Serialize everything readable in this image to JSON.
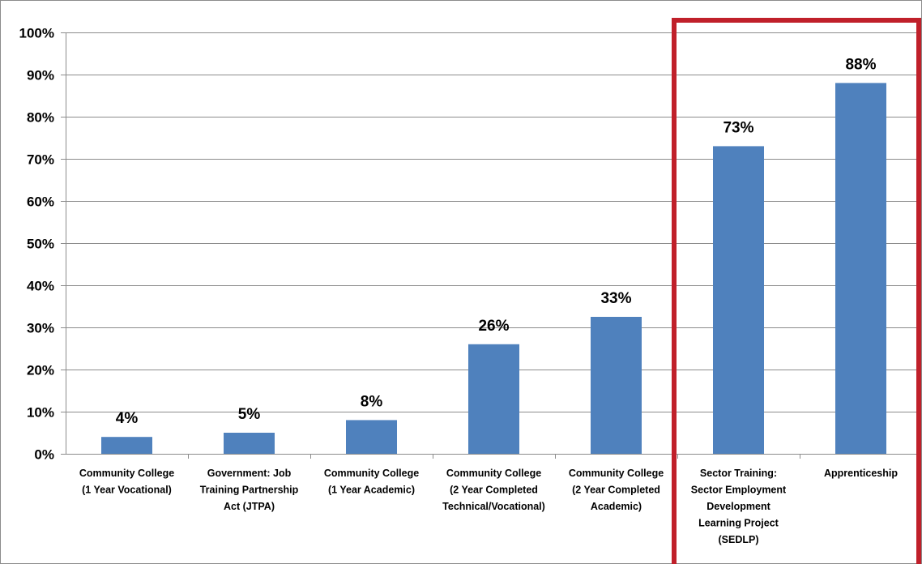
{
  "chart_data": {
    "type": "bar",
    "categories": [
      [
        "Community College",
        "(1 Year Vocational)"
      ],
      [
        "Government: Job",
        "Training Partnership",
        "Act (JTPA)"
      ],
      [
        "Community College",
        "(1 Year Academic)"
      ],
      [
        "Community College",
        "(2 Year  Completed",
        "Technical/Vocational)"
      ],
      [
        "Community College",
        "(2 Year  Completed",
        "Academic)"
      ],
      [
        "Sector Training:",
        "Sector Employment",
        "Development",
        "Learning Project",
        "(SEDLP)"
      ],
      [
        "Apprenticeship"
      ]
    ],
    "values": [
      4,
      5,
      8,
      26,
      32.5,
      73,
      88
    ],
    "data_labels": [
      "4%",
      "5%",
      "8%",
      "26%",
      "33%",
      "73%",
      "88%"
    ],
    "ylim": [
      0,
      100
    ],
    "yticks": [
      0,
      10,
      20,
      30,
      40,
      50,
      60,
      70,
      80,
      90,
      100
    ],
    "ytick_labels": [
      "0%",
      "10%",
      "20%",
      "30%",
      "40%",
      "50%",
      "60%",
      "70%",
      "80%",
      "90%",
      "100%"
    ],
    "grid": true,
    "highlight": {
      "categories": [
        5,
        6
      ],
      "color": "#C0202A"
    },
    "colors": {
      "bar": "#4F81BD",
      "grid": "#8C8C8C",
      "axis": "#8C8C8C"
    },
    "title": "",
    "xlabel": "",
    "ylabel": ""
  }
}
